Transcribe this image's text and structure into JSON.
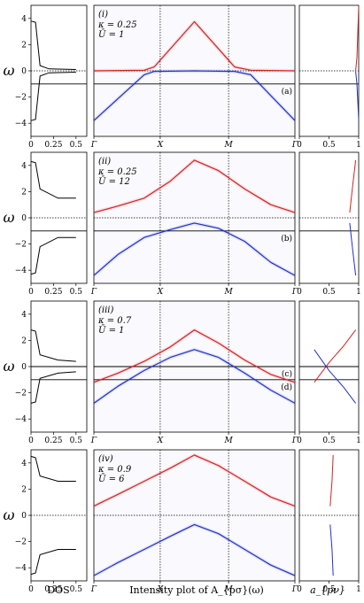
{
  "figure": {
    "xlabels": {
      "left": "DOS",
      "center": "Intensity plot of A_{pσ}(ω)",
      "right": "a_{pν}"
    },
    "ylabel": "ω"
  },
  "chart_data": [
    {
      "type": "line",
      "panel": "(i)",
      "params": [
        "κ = 0.25",
        "Ū = 1"
      ],
      "ylim": [
        -5,
        5
      ],
      "yticks": [
        -4,
        -2,
        0,
        2,
        4
      ],
      "dos_xticks": [
        "0",
        "0.25",
        "0.5"
      ],
      "k_path": [
        "Γ",
        "X",
        "M",
        "Γ"
      ],
      "a_xticks": [
        "0",
        "0.5",
        "1"
      ],
      "hlines": [
        {
          "y": 0,
          "style": "dotted"
        },
        {
          "y": -1,
          "style": "solid"
        }
      ],
      "hline_labels": [
        {
          "text": "(a)",
          "y": -1
        }
      ],
      "series": [
        {
          "color": "#d62020",
          "k": [
            0,
            0.25,
            0.3,
            0.5,
            0.7,
            0.78,
            1
          ],
          "values": [
            0.0,
            0.05,
            0.3,
            3.75,
            0.3,
            0.05,
            0.0
          ]
        },
        {
          "color": "#2030c8",
          "k": [
            0,
            0.25,
            0.3,
            0.5,
            0.7,
            0.78,
            1
          ],
          "values": [
            -3.8,
            -0.3,
            -0.05,
            0.0,
            -0.05,
            -0.3,
            -3.8
          ]
        }
      ],
      "dos": [
        {
          "color": "#000",
          "x": [
            0.0,
            0.05,
            0.1,
            0.2,
            0.5
          ],
          "y": [
            3.8,
            3.7,
            0.4,
            0.15,
            0.1
          ]
        },
        {
          "color": "#000",
          "x": [
            0.0,
            0.05,
            0.1,
            0.2,
            0.5
          ],
          "y": [
            -3.8,
            -3.7,
            -0.4,
            -0.15,
            -0.1
          ]
        }
      ],
      "apnu": [
        {
          "color": "#d62020",
          "style": "solid",
          "x": [
            1.0,
            0.97,
            0.95
          ],
          "y": [
            4.9,
            1.0,
            0.05
          ]
        },
        {
          "color": "#2030c8",
          "style": "solid",
          "x": [
            1.0,
            0.97,
            0.95
          ],
          "y": [
            -3.7,
            -1.0,
            -0.05
          ]
        }
      ]
    },
    {
      "type": "line",
      "panel": "(ii)",
      "params": [
        "κ = 0.25",
        "Ū = 12"
      ],
      "ylim": [
        -5,
        5
      ],
      "yticks": [
        -4,
        -2,
        0,
        2,
        4
      ],
      "dos_xticks": [
        "0",
        "0.25",
        "0.5"
      ],
      "k_path": [
        "Γ",
        "X",
        "M",
        "Γ"
      ],
      "a_xticks": [
        "0",
        "0.5",
        "1"
      ],
      "hlines": [
        {
          "y": 0,
          "style": "dotted"
        },
        {
          "y": -1,
          "style": "solid"
        }
      ],
      "hline_labels": [
        {
          "text": "(b)",
          "y": -1
        }
      ],
      "series": [
        {
          "color": "#d62020",
          "k": [
            0,
            0.12,
            0.25,
            0.38,
            0.5,
            0.62,
            0.75,
            0.88,
            1
          ],
          "values": [
            0.4,
            0.9,
            1.5,
            2.8,
            4.4,
            3.6,
            2.2,
            1.0,
            0.4
          ]
        },
        {
          "color": "#2030c8",
          "k": [
            0,
            0.12,
            0.25,
            0.38,
            0.5,
            0.62,
            0.75,
            0.88,
            1
          ],
          "values": [
            -4.4,
            -2.8,
            -1.5,
            -0.9,
            -0.4,
            -0.8,
            -1.8,
            -3.4,
            -4.4
          ]
        }
      ],
      "dos": [
        {
          "color": "#000",
          "x": [
            0.0,
            0.05,
            0.1,
            0.3,
            0.5
          ],
          "y": [
            4.3,
            4.2,
            2.2,
            1.5,
            1.5
          ]
        },
        {
          "color": "#000",
          "x": [
            0.0,
            0.05,
            0.1,
            0.3,
            0.5
          ],
          "y": [
            -4.3,
            -4.2,
            -2.2,
            -1.5,
            -1.5
          ]
        }
      ],
      "apnu": [
        {
          "color": "#d62020",
          "style": "solid",
          "x": [
            0.85,
            0.9,
            0.95
          ],
          "y": [
            0.4,
            2.5,
            4.4
          ]
        },
        {
          "color": "#2030c8",
          "style": "solid",
          "x": [
            0.85,
            0.9,
            0.95
          ],
          "y": [
            -0.4,
            -2.5,
            -4.4
          ]
        }
      ]
    },
    {
      "type": "line",
      "panel": "(iii)",
      "params": [
        "κ = 0.7",
        "Ū = 1"
      ],
      "ylim": [
        -5,
        5
      ],
      "yticks": [
        -4,
        -2,
        0,
        2,
        4
      ],
      "dos_xticks": [
        "0",
        "0.25",
        "0.5"
      ],
      "k_path": [
        "Γ",
        "X",
        "M",
        "Γ"
      ],
      "a_xticks": [
        "0",
        "0.5",
        "1"
      ],
      "hlines": [
        {
          "y": 0,
          "style": "solid"
        },
        {
          "y": -1,
          "style": "solid"
        }
      ],
      "hline_labels": [
        {
          "text": "(c)",
          "y": 0
        },
        {
          "text": "(d)",
          "y": -1
        }
      ],
      "series": [
        {
          "color": "#d62020",
          "k": [
            0,
            0.12,
            0.25,
            0.38,
            0.5,
            0.62,
            0.75,
            0.88,
            1
          ],
          "values": [
            -1.2,
            -0.5,
            0.4,
            1.5,
            2.8,
            1.8,
            0.5,
            -0.6,
            -1.2
          ]
        },
        {
          "color": "#2030c8",
          "k": [
            0,
            0.12,
            0.25,
            0.38,
            0.5,
            0.62,
            0.75,
            0.88,
            1
          ],
          "values": [
            -2.8,
            -1.5,
            -0.3,
            0.7,
            1.3,
            0.7,
            -0.5,
            -1.8,
            -2.8
          ]
        }
      ],
      "dos": [
        {
          "color": "#000",
          "x": [
            0.0,
            0.05,
            0.1,
            0.3,
            0.5
          ],
          "y": [
            2.8,
            2.7,
            0.9,
            0.5,
            0.4
          ]
        },
        {
          "color": "#000",
          "x": [
            0.0,
            0.05,
            0.1,
            0.3,
            0.5
          ],
          "y": [
            -2.8,
            -2.7,
            -0.9,
            -0.5,
            -0.4
          ]
        }
      ],
      "apnu": [
        {
          "color": "#d62020",
          "style": "solid",
          "x": [
            0.25,
            0.5,
            0.75,
            0.95
          ],
          "y": [
            -1.2,
            0.3,
            1.6,
            2.8
          ]
        },
        {
          "color": "#2030c8",
          "style": "solid",
          "x": [
            0.95,
            0.75,
            0.5,
            0.25
          ],
          "y": [
            -2.8,
            -1.6,
            -0.3,
            1.3
          ]
        }
      ]
    },
    {
      "type": "line",
      "panel": "(iv)",
      "params": [
        "κ = 0.9",
        "Ū = 6"
      ],
      "ylim": [
        -5,
        5
      ],
      "yticks": [
        -4,
        -2,
        0,
        2,
        4
      ],
      "dos_xticks": [
        "0",
        "0.25",
        "0.5"
      ],
      "k_path": [
        "Γ",
        "X",
        "M",
        "Γ"
      ],
      "a_xticks": [
        "0",
        "0.5",
        "1"
      ],
      "hlines": [
        {
          "y": 0,
          "style": "dotted"
        }
      ],
      "hline_labels": [],
      "series": [
        {
          "color": "#d62020",
          "k": [
            0,
            0.12,
            0.25,
            0.38,
            0.5,
            0.62,
            0.75,
            0.88,
            1
          ],
          "values": [
            0.7,
            1.6,
            2.6,
            3.6,
            4.6,
            3.8,
            2.6,
            1.4,
            0.7
          ]
        },
        {
          "color": "#2030c8",
          "k": [
            0,
            0.12,
            0.25,
            0.38,
            0.5,
            0.62,
            0.75,
            0.88,
            1
          ],
          "values": [
            -4.6,
            -3.6,
            -2.6,
            -1.6,
            -0.7,
            -1.4,
            -2.6,
            -3.8,
            -4.6
          ]
        }
      ],
      "dos": [
        {
          "color": "#000",
          "x": [
            0.0,
            0.05,
            0.1,
            0.3,
            0.5
          ],
          "y": [
            4.5,
            4.4,
            3.0,
            2.6,
            2.6
          ]
        },
        {
          "color": "#000",
          "x": [
            0.0,
            0.05,
            0.1,
            0.3,
            0.5
          ],
          "y": [
            -4.5,
            -4.4,
            -3.0,
            -2.6,
            -2.6
          ]
        }
      ],
      "apnu": [
        {
          "color": "#d62020",
          "style": "solid",
          "x": [
            0.52,
            0.55,
            0.57
          ],
          "y": [
            0.7,
            2.6,
            4.6
          ]
        },
        {
          "color": "#2030c8",
          "style": "solid",
          "x": [
            0.52,
            0.55,
            0.57
          ],
          "y": [
            -0.7,
            -2.6,
            -4.6
          ]
        }
      ]
    }
  ]
}
